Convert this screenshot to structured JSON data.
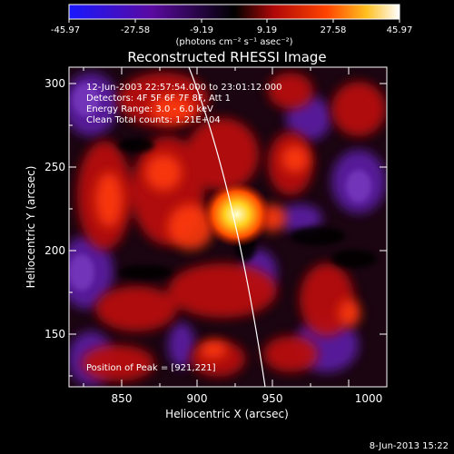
{
  "colorbar": {
    "tick_labels": [
      "-45.97",
      "-27.58",
      "-9.19",
      "9.19",
      "27.58",
      "45.97"
    ],
    "units": "(photons cm⁻² s⁻¹ asec⁻²)",
    "colors": [
      "#2020ff",
      "#4a0a80",
      "#000000",
      "#c01010",
      "#ff6000",
      "#ffffff"
    ]
  },
  "title": "Reconstructed RHESSI Image",
  "info": {
    "line1": "12-Jun-2003 22:57:54.000 to 23:01:12.000",
    "line2": "Detectors: 4F 5F 6F 7F 8F, Att 1",
    "line3": "Energy Range: 3.0 - 6.0 keV",
    "line4": "Clean     Total counts: 1.21E+04"
  },
  "peak_label": "Position of Peak = [921,221]",
  "axes": {
    "xlabel": "Heliocentric X (arcsec)",
    "ylabel": "Heliocentric Y (arcsec)",
    "xticks": [
      "850",
      "900",
      "950",
      "1000"
    ],
    "yticks": [
      "150",
      "200",
      "250",
      "300"
    ],
    "xlim": [
      816,
      1026
    ],
    "ylim": [
      116,
      316
    ]
  },
  "footer": "8-Jun-2013 15:22"
}
